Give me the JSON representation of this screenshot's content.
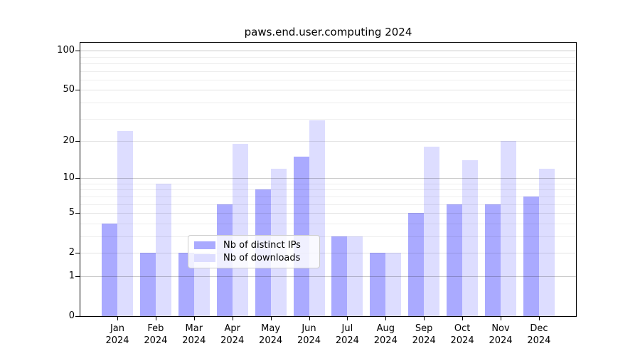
{
  "title": "paws.end.user.computing 2024",
  "chart_data": {
    "type": "bar",
    "title": "paws.end.user.computing 2024",
    "categories": [
      "Jan",
      "Feb",
      "Mar",
      "Apr",
      "May",
      "Jun",
      "Jul",
      "Aug",
      "Sep",
      "Oct",
      "Nov",
      "Dec"
    ],
    "category_year": "2024",
    "series": [
      {
        "name": "Nb of distinct IPs",
        "color": "#aaaaff",
        "values": [
          4,
          2,
          2,
          6,
          8,
          15,
          3,
          2,
          5,
          6,
          6,
          7
        ]
      },
      {
        "name": "Nb of downloads",
        "color": "#ddddff",
        "values": [
          24,
          9,
          2,
          19,
          12,
          29,
          3,
          2,
          18,
          14,
          20,
          12
        ]
      }
    ],
    "y_axis": {
      "scale": "log1p",
      "tick_values": [
        0,
        1,
        2,
        5,
        10,
        20,
        50,
        100
      ],
      "decade_gridlines": [
        1,
        10,
        100
      ],
      "labeled_gridlines": [
        2,
        5,
        20,
        50
      ],
      "minor_gridlines": [
        3,
        4,
        6,
        7,
        8,
        9,
        30,
        40,
        60,
        70,
        80,
        90
      ],
      "ylim": [
        0,
        115
      ]
    },
    "legend": {
      "position": "bottom-center",
      "entries": [
        "Nb of distinct IPs",
        "Nb of downloads"
      ]
    },
    "grid": true,
    "colors": {
      "axis": "#000000",
      "background": "#ffffff",
      "bar_distinct_ips": "#aaaaff",
      "bar_downloads": "#ddddff"
    }
  }
}
